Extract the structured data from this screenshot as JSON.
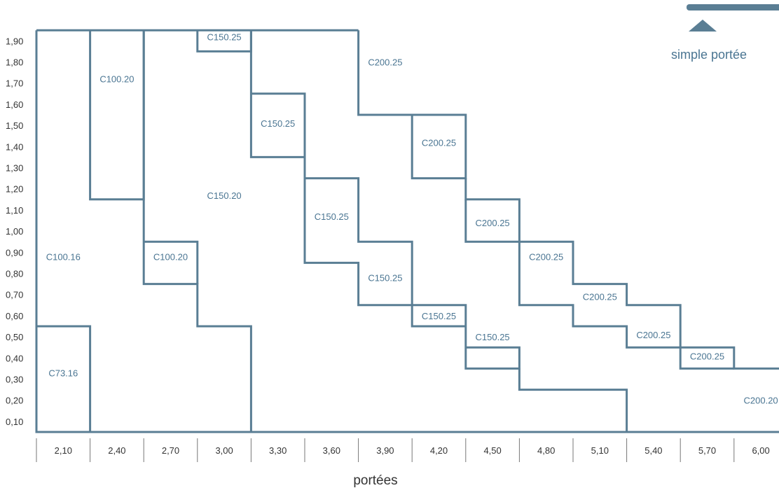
{
  "chart_data": {
    "type": "heatmap",
    "title": "",
    "xlabel": "portées",
    "ylabel": "",
    "x_ticks": [
      "2,10",
      "2,40",
      "2,70",
      "3,00",
      "3,30",
      "3,60",
      "3,90",
      "4,20",
      "4,50",
      "4,80",
      "5,10",
      "5,40",
      "5,70",
      "6,00"
    ],
    "y_ticks": [
      "0,10",
      "0,20",
      "0,30",
      "0,40",
      "0,50",
      "0,60",
      "0,70",
      "0,80",
      "0,90",
      "1,00",
      "1,10",
      "1,20",
      "1,30",
      "1,40",
      "1,50",
      "1,60",
      "1,70",
      "1,80",
      "1,90"
    ],
    "legend": {
      "label": "simple portée"
    },
    "boundaries": [
      {
        "points": [
          [
            1.95,
            1.95
          ],
          [
            1.95,
            0.05
          ],
          [
            2.25,
            0.05
          ],
          [
            2.25,
            0.55
          ],
          [
            1.95,
            0.55
          ]
        ]
      },
      {
        "points": [
          [
            2.25,
            1.95
          ],
          [
            2.25,
            1.15
          ],
          [
            2.55,
            1.15
          ],
          [
            2.55,
            1.95
          ]
        ]
      },
      {
        "points": [
          [
            1.95,
            1.95
          ],
          [
            3.75,
            1.95
          ]
        ]
      },
      {
        "points": [
          [
            2.55,
            1.95
          ],
          [
            2.55,
            0.75
          ],
          [
            2.85,
            0.75
          ],
          [
            2.85,
            0.55
          ],
          [
            3.15,
            0.55
          ],
          [
            3.15,
            0.05
          ],
          [
            1.95,
            0.05
          ]
        ]
      },
      {
        "points": [
          [
            2.55,
            0.95
          ],
          [
            2.85,
            0.95
          ],
          [
            2.85,
            0.75
          ]
        ]
      },
      {
        "points": [
          [
            2.85,
            1.95
          ],
          [
            2.85,
            1.85
          ],
          [
            3.15,
            1.85
          ],
          [
            3.15,
            1.95
          ]
        ]
      },
      {
        "points": [
          [
            3.15,
            1.95
          ],
          [
            3.15,
            1.35
          ],
          [
            3.45,
            1.35
          ],
          [
            3.45,
            1.65
          ],
          [
            3.15,
            1.65
          ]
        ]
      },
      {
        "points": [
          [
            3.45,
            1.35
          ],
          [
            3.45,
            0.85
          ],
          [
            3.75,
            0.85
          ],
          [
            3.75,
            0.65
          ],
          [
            4.05,
            0.65
          ],
          [
            4.05,
            0.55
          ],
          [
            4.35,
            0.55
          ],
          [
            4.35,
            0.45
          ],
          [
            4.65,
            0.45
          ],
          [
            4.65,
            0.35
          ],
          [
            4.35,
            0.35
          ],
          [
            4.35,
            0.65
          ],
          [
            4.05,
            0.65
          ]
        ]
      },
      {
        "points": [
          [
            3.45,
            1.25
          ],
          [
            3.75,
            1.25
          ],
          [
            3.75,
            0.95
          ],
          [
            4.05,
            0.95
          ],
          [
            4.05,
            0.65
          ]
        ]
      },
      {
        "points": [
          [
            3.75,
            1.95
          ],
          [
            3.75,
            1.55
          ],
          [
            4.05,
            1.55
          ],
          [
            4.05,
            1.25
          ],
          [
            4.35,
            1.25
          ],
          [
            4.35,
            1.55
          ],
          [
            4.05,
            1.55
          ]
        ]
      },
      {
        "points": [
          [
            4.35,
            1.25
          ],
          [
            4.35,
            1.15
          ],
          [
            4.65,
            1.15
          ],
          [
            4.65,
            0.95
          ],
          [
            4.95,
            0.95
          ],
          [
            4.95,
            0.75
          ],
          [
            5.25,
            0.75
          ],
          [
            5.25,
            0.65
          ],
          [
            5.55,
            0.65
          ],
          [
            5.55,
            0.45
          ],
          [
            5.85,
            0.45
          ],
          [
            5.85,
            0.35
          ],
          [
            6.15,
            0.35
          ]
        ]
      },
      {
        "points": [
          [
            4.35,
            1.15
          ],
          [
            4.35,
            0.95
          ],
          [
            4.65,
            0.95
          ],
          [
            4.65,
            0.65
          ],
          [
            4.95,
            0.65
          ],
          [
            4.95,
            0.55
          ],
          [
            5.25,
            0.55
          ],
          [
            5.25,
            0.45
          ],
          [
            5.55,
            0.45
          ],
          [
            5.55,
            0.35
          ],
          [
            5.85,
            0.35
          ]
        ]
      },
      {
        "points": [
          [
            4.65,
            0.35
          ],
          [
            4.65,
            0.25
          ],
          [
            5.25,
            0.25
          ],
          [
            5.25,
            0.05
          ],
          [
            3.15,
            0.05
          ]
        ]
      },
      {
        "points": [
          [
            5.25,
            0.05
          ],
          [
            6.15,
            0.05
          ]
        ]
      }
    ],
    "regions": [
      {
        "label": "C73.16",
        "x": 2.1,
        "y": 0.33
      },
      {
        "label": "C100.16",
        "x": 2.1,
        "y": 0.88
      },
      {
        "label": "C100.20",
        "x": 2.4,
        "y": 1.72
      },
      {
        "label": "C100.20",
        "x": 2.7,
        "y": 0.88
      },
      {
        "label": "C150.25",
        "x": 3.0,
        "y": 1.92
      },
      {
        "label": "C150.20",
        "x": 3.0,
        "y": 1.17
      },
      {
        "label": "C150.25",
        "x": 3.3,
        "y": 1.51
      },
      {
        "label": "C150.25",
        "x": 3.6,
        "y": 1.07
      },
      {
        "label": "C150.25",
        "x": 3.9,
        "y": 0.78
      },
      {
        "label": "C200.25",
        "x": 3.9,
        "y": 1.8
      },
      {
        "label": "C200.25",
        "x": 4.2,
        "y": 1.42
      },
      {
        "label": "C150.25",
        "x": 4.2,
        "y": 0.6
      },
      {
        "label": "C200.25",
        "x": 4.5,
        "y": 1.04
      },
      {
        "label": "C150.25",
        "x": 4.5,
        "y": 0.5
      },
      {
        "label": "C200.25",
        "x": 4.8,
        "y": 0.88
      },
      {
        "label": "C200.25",
        "x": 5.1,
        "y": 0.69
      },
      {
        "label": "C200.25",
        "x": 5.4,
        "y": 0.51
      },
      {
        "label": "C200.25",
        "x": 5.7,
        "y": 0.41
      },
      {
        "label": "C200.20",
        "x": 6.0,
        "y": 0.2
      }
    ],
    "colors": {
      "line": "#5a7e94",
      "label": "#4a7592",
      "legend": "#4a7592"
    }
  }
}
